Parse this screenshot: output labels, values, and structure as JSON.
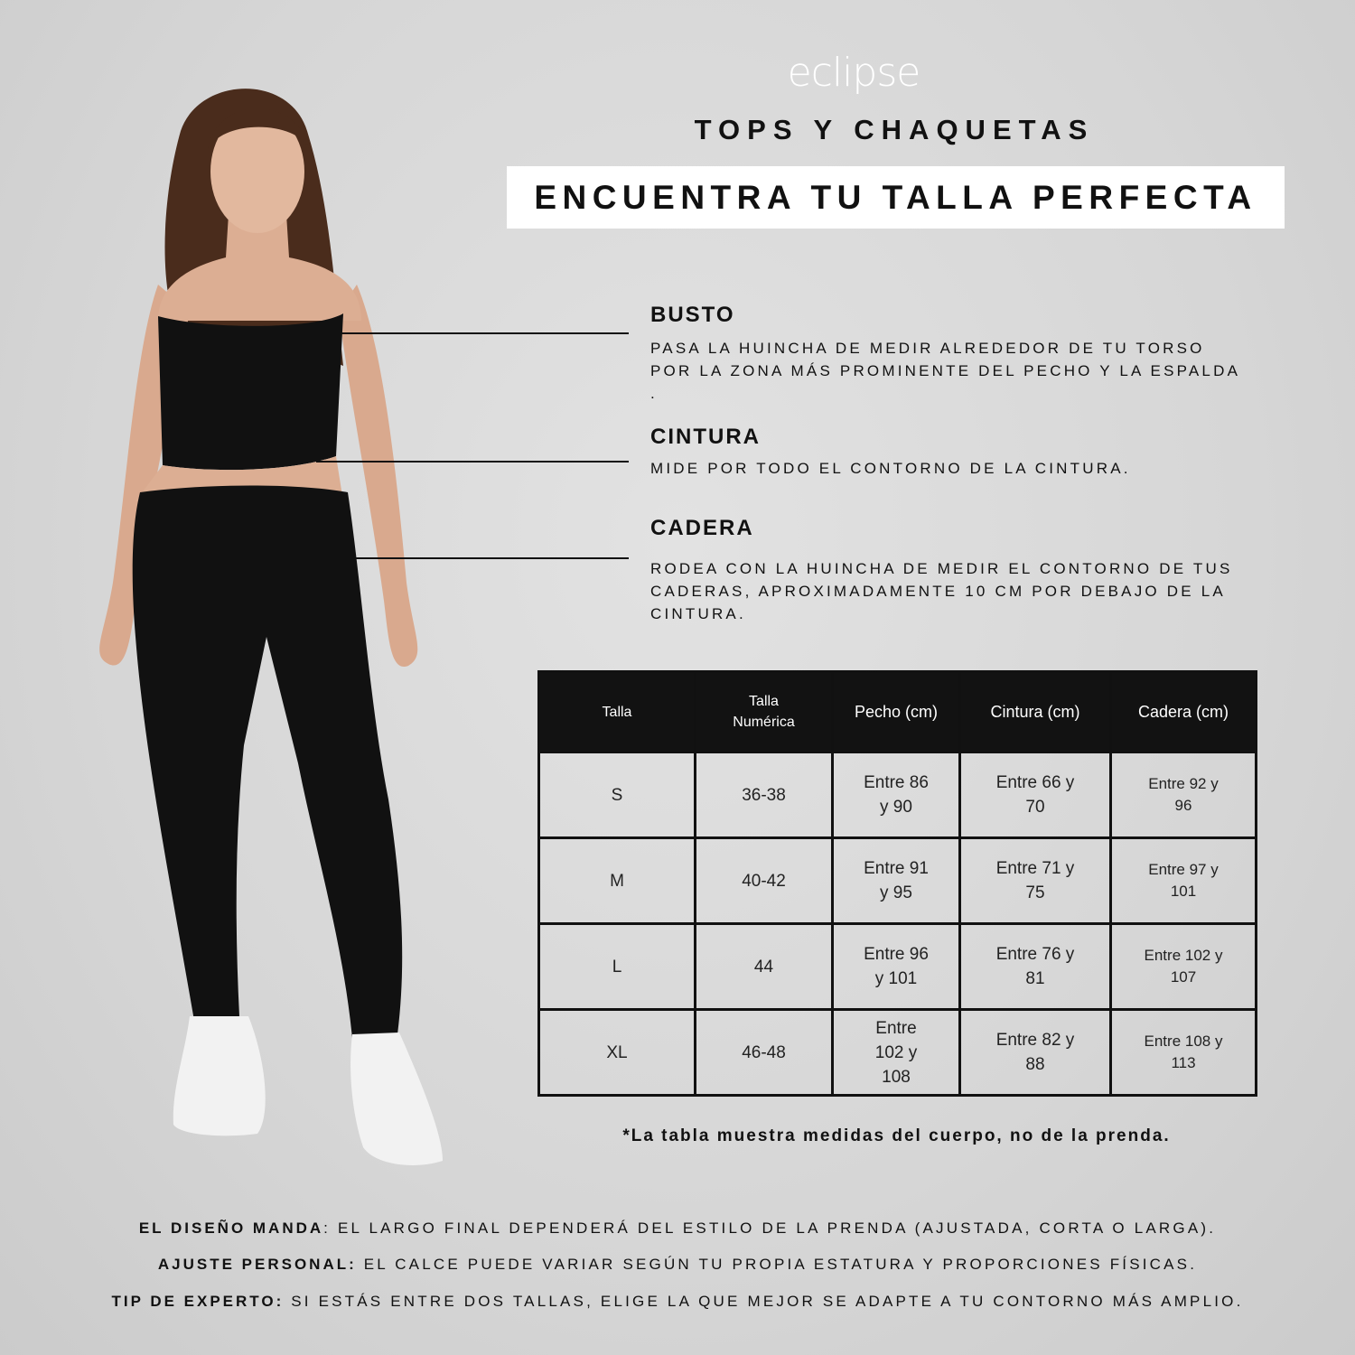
{
  "brand": {
    "logo": "eclipse"
  },
  "header": {
    "subtitle": "TOPS Y CHAQUETAS",
    "title": "ENCUENTRA TU TALLA PERFECTA"
  },
  "measurements": [
    {
      "title": "BUSTO",
      "text": "PASA LA HUINCHA DE MEDIR ALREDEDOR DE TU TORSO\nPOR LA ZONA MÁS PROMINENTE DEL PECHO Y LA ESPALDA\n."
    },
    {
      "title": "CINTURA",
      "text": "MIDE  POR TODO EL CONTORNO DE LA CINTURA."
    },
    {
      "title": "CADERA",
      "text": "RODEA CON LA HUINCHA DE MEDIR EL CONTORNO DE TUS\nCADERAS, APROXIMADAMENTE 10 CM POR DEBAJO DE LA\nCINTURA."
    }
  ],
  "table": {
    "headers": [
      "Talla",
      "Talla Numérica",
      "Pecho (cm)",
      "Cintura (cm)",
      "Cadera (cm)"
    ],
    "rows": [
      [
        "S",
        "36-38",
        "Entre 86 y 90",
        "Entre 66 y 70",
        "Entre 92 y 96"
      ],
      [
        "M",
        "40-42",
        "Entre 91 y 95",
        "Entre 71 y 75",
        "Entre 97 y 101"
      ],
      [
        "L",
        "44",
        "Entre 96 y 101",
        "Entre 76 y 81",
        "Entre 102 y 107"
      ],
      [
        "XL",
        "46-48",
        "Entre 102 y 108",
        "Entre 82 y 88",
        "Entre 108 y 113"
      ]
    ]
  },
  "note": "*La tabla muestra medidas del cuerpo, no de la prenda.",
  "tips": [
    {
      "label": "EL DISEÑO MANDA",
      "text": ": EL LARGO FINAL DEPENDERÁ DEL ESTILO DE LA PRENDA (AJUSTADA, CORTA O LARGA)."
    },
    {
      "label": "AJUSTE PERSONAL:",
      "text": " EL CALCE PUEDE VARIAR SEGÚN TU PROPIA ESTATURA Y PROPORCIONES FÍSICAS."
    },
    {
      "label": "TIP DE EXPERTO:",
      "text": " SI ESTÁS ENTRE DOS TALLAS, ELIGE LA QUE MEJOR SE ADAPTE A TU CONTORNO MÁS AMPLIO."
    }
  ]
}
